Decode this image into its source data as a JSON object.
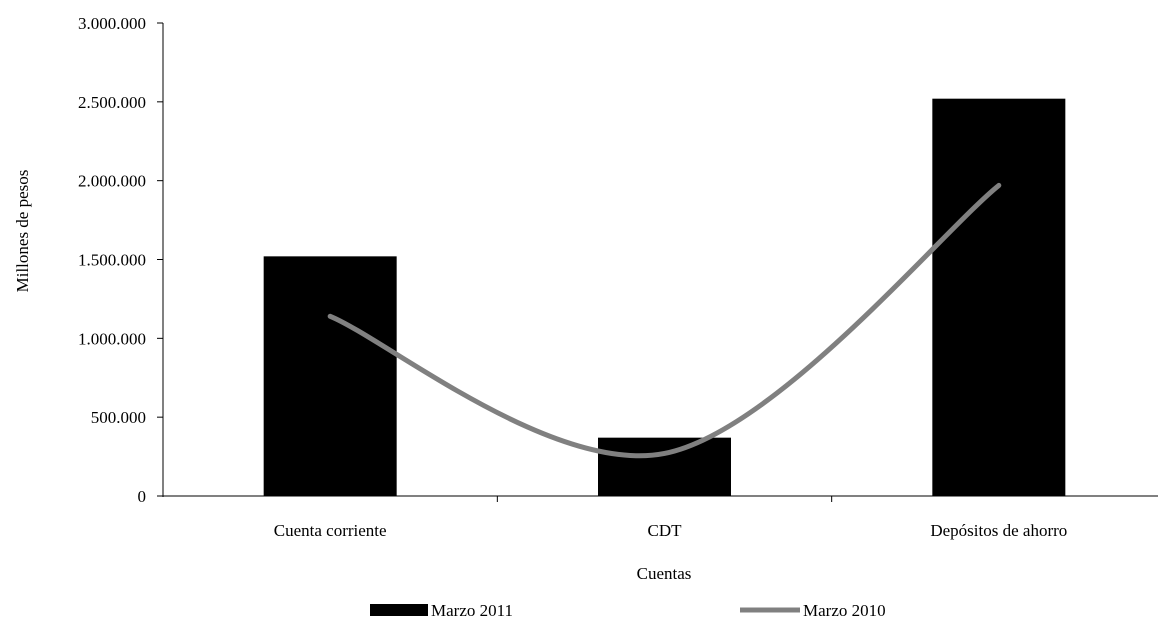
{
  "chart_data": {
    "type": "bar",
    "title": "",
    "categories": [
      "Cuenta corriente",
      "CDT",
      "Depósitos de ahorro"
    ],
    "series": [
      {
        "name": "Marzo 2011",
        "type": "bar",
        "values": [
          1520000,
          370000,
          2520000
        ],
        "color": "#000000"
      },
      {
        "name": "Marzo 2010",
        "type": "line",
        "smooth": true,
        "values": [
          1140000,
          270000,
          1970000
        ],
        "color": "#808080"
      }
    ],
    "xlabel": "Cuentas",
    "ylabel": "Millones de pesos",
    "ylim": [
      0,
      3000000
    ],
    "yticks": [
      0,
      500000,
      1000000,
      1500000,
      2000000,
      2500000,
      3000000
    ],
    "ytick_labels": [
      "0",
      "500.000",
      "1.000.000",
      "1.500.000",
      "2.000.000",
      "2.500.000",
      "3.000.000"
    ],
    "grid": false,
    "legend": "bottom"
  }
}
